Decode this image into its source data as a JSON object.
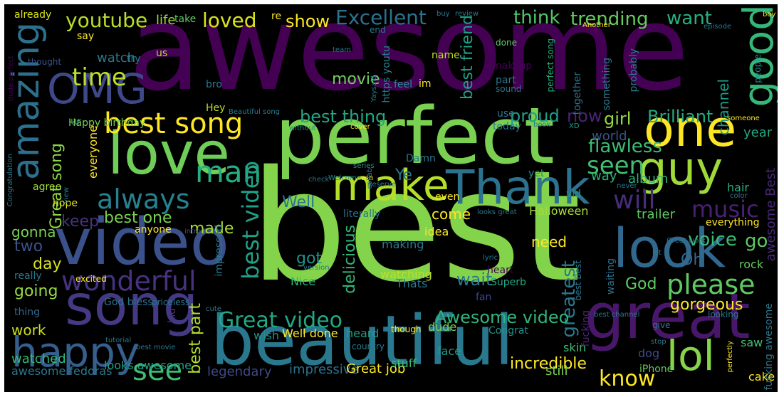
{
  "words": [
    {
      "text": "awesome",
      "color": "#440154"
    },
    {
      "text": "best",
      "color": "#84d44b"
    },
    {
      "text": "perfect",
      "color": "#7ad151"
    },
    {
      "text": "beautiful",
      "color": "#2a788e"
    },
    {
      "text": "great",
      "color": "#481769"
    },
    {
      "text": "video",
      "color": "#3b518b"
    },
    {
      "text": "love",
      "color": "#6ece58"
    },
    {
      "text": "song",
      "color": "#443983"
    },
    {
      "text": "one",
      "color": "#fde725"
    },
    {
      "text": "look",
      "color": "#31688e"
    },
    {
      "text": "Thank",
      "color": "#2c728e"
    },
    {
      "text": "guy",
      "color": "#a0da39"
    },
    {
      "text": "make",
      "color": "#b5de2b"
    },
    {
      "text": "happy",
      "color": "#355f8d"
    },
    {
      "text": "lol",
      "color": "#86d549"
    },
    {
      "text": "OMG",
      "color": "#3e4989"
    },
    {
      "text": "amazing",
      "color": "#2d708e"
    },
    {
      "text": "good",
      "color": "#35b779"
    },
    {
      "text": "best song",
      "color": "#fde725"
    },
    {
      "text": "always",
      "color": "#26828e"
    },
    {
      "text": "wonderful",
      "color": "#46327e"
    },
    {
      "text": "please",
      "color": "#5ec962"
    },
    {
      "text": "see",
      "color": "#3dbc74"
    },
    {
      "text": "man",
      "color": "#26ad81"
    },
    {
      "text": "know",
      "color": "#fde725"
    },
    {
      "text": "Great video",
      "color": "#22a884"
    },
    {
      "text": "best video",
      "color": "#1fa187"
    },
    {
      "text": "will",
      "color": "#472d7b"
    },
    {
      "text": "music",
      "color": "#482173"
    },
    {
      "text": "seen",
      "color": "#42be71"
    },
    {
      "text": "time",
      "color": "#bddf26"
    },
    {
      "text": "greatest",
      "color": "#2a788e"
    },
    {
      "text": "voice",
      "color": "#3bbb75"
    },
    {
      "text": "Awesome video",
      "color": "#2fb47c"
    },
    {
      "text": "flawless",
      "color": "#3dbc74"
    },
    {
      "text": "loved",
      "color": "#dae319"
    },
    {
      "text": "Excellent",
      "color": "#2c728e"
    },
    {
      "text": "youtube",
      "color": "#b8de29"
    },
    {
      "text": "think",
      "color": "#52c569"
    },
    {
      "text": "trending",
      "color": "#65cb5e"
    },
    {
      "text": "want",
      "color": "#29af7f"
    },
    {
      "text": "show",
      "color": "#fde725"
    },
    {
      "text": "best thing",
      "color": "#22a884"
    },
    {
      "text": "proud",
      "color": "#1f9e89"
    },
    {
      "text": "now",
      "color": "#482475"
    },
    {
      "text": "girl",
      "color": "#95d840"
    },
    {
      "text": "Brilliant",
      "color": "#25ac82"
    },
    {
      "text": "best friend",
      "color": "#1fa187"
    },
    {
      "text": "channel",
      "color": "#1e9c89"
    },
    {
      "text": "movie",
      "color": "#6ece58"
    },
    {
      "text": "gorgeous",
      "color": "#fde725"
    },
    {
      "text": "God",
      "color": "#5ec962"
    },
    {
      "text": "wait",
      "color": "#2a788e"
    },
    {
      "text": "delicious",
      "color": "#35b779"
    },
    {
      "text": "incredible",
      "color": "#fde725"
    },
    {
      "text": "Great song",
      "color": "#8bd646"
    },
    {
      "text": "best part",
      "color": "#b5de2b"
    },
    {
      "text": "made",
      "color": "#a8db34"
    },
    {
      "text": "two",
      "color": "#3b528b"
    },
    {
      "text": "day",
      "color": "#d8e219"
    },
    {
      "text": "going",
      "color": "#95d840"
    },
    {
      "text": "keep",
      "color": "#46327e"
    },
    {
      "text": "best one",
      "color": "#7ad151"
    },
    {
      "text": "gonna",
      "color": "#7ad151"
    },
    {
      "text": "work",
      "color": "#cde11d"
    },
    {
      "text": "watched",
      "color": "#35b779"
    },
    {
      "text": "awesome fedoras",
      "color": "#2a788e"
    },
    {
      "text": "looks awesome",
      "color": "#1f9e89"
    },
    {
      "text": "legendary",
      "color": "#3e4989"
    },
    {
      "text": "impressive",
      "color": "#2c728e"
    },
    {
      "text": "Great job",
      "color": "#fde725"
    },
    {
      "text": "still",
      "color": "#7ad151"
    },
    {
      "text": "watch",
      "color": "#2a788e"
    },
    {
      "text": "life",
      "color": "#a0da39"
    },
    {
      "text": "Oh",
      "color": "#31688e"
    },
    {
      "text": "got",
      "color": "#21918c"
    },
    {
      "text": "Well",
      "color": "#2c728e"
    },
    {
      "text": "Ye",
      "color": "#2a788e"
    },
    {
      "text": "come",
      "color": "#fde725"
    },
    {
      "text": "need",
      "color": "#fde725"
    },
    {
      "text": "year",
      "color": "#22a884"
    },
    {
      "text": "world",
      "color": "#3b528b"
    },
    {
      "text": "way",
      "color": "#2fb47c"
    },
    {
      "text": "album",
      "color": "#2fb47c"
    },
    {
      "text": "go",
      "color": "#5ec962"
    },
    {
      "text": "awesome Best",
      "color": "#482878"
    },
    {
      "text": "trailer",
      "color": "#5ec962"
    },
    {
      "text": "Halloween",
      "color": "#a5db36"
    },
    {
      "text": "hair",
      "color": "#29af7f"
    },
    {
      "text": "rock",
      "color": "#65cb5e"
    },
    {
      "text": "saw",
      "color": "#42be71"
    },
    {
      "text": "skin",
      "color": "#3dbc74"
    },
    {
      "text": "dog",
      "color": "#3e4989"
    },
    {
      "text": "cake",
      "color": "#fde725"
    },
    {
      "text": "iPhone",
      "color": "#65cb5e"
    },
    {
      "text": "face",
      "color": "#1f9e89"
    },
    {
      "text": "stuff",
      "color": "#3dbc74"
    },
    {
      "text": "Congrat",
      "color": "#21918c"
    },
    {
      "text": "dude",
      "color": "#7ad151"
    },
    {
      "text": "Superb",
      "color": "#22a884"
    },
    {
      "text": "fan",
      "color": "#3e4989"
    },
    {
      "text": "Thats",
      "color": "#2a788e"
    },
    {
      "text": "watching",
      "color": "#bddf26"
    },
    {
      "text": "Nice",
      "color": "#2fb47c"
    },
    {
      "text": "making",
      "color": "#2a788e"
    },
    {
      "text": "idea",
      "color": "#fde725"
    },
    {
      "text": "let",
      "color": "#7ad151"
    },
    {
      "text": "Well done",
      "color": "#fde725"
    },
    {
      "text": "heard",
      "color": "#1f9e89"
    },
    {
      "text": "wish",
      "color": "#21918c"
    },
    {
      "text": "Happy birthday",
      "color": "#7ad151"
    },
    {
      "text": "everyone",
      "color": "#fde725"
    },
    {
      "text": "hope",
      "color": "#e5e419"
    },
    {
      "text": "agree",
      "color": "#a0da39"
    },
    {
      "text": "really",
      "color": "#2a788e"
    },
    {
      "text": "thing",
      "color": "#31688e"
    },
    {
      "text": "kid",
      "color": "#46327e"
    },
    {
      "text": "God bless",
      "color": "#2c728e"
    },
    {
      "text": "anyone",
      "color": "#fde725"
    },
    {
      "text": "impressed",
      "color": "#2a788e"
    },
    {
      "text": "Hey",
      "color": "#bddf26"
    },
    {
      "text": "ur",
      "color": "#1f9e89"
    },
    {
      "text": "bro",
      "color": "#2a788e"
    },
    {
      "text": "us",
      "color": "#b5de2b"
    },
    {
      "text": "say",
      "color": "#fde725"
    },
    {
      "text": "already",
      "color": "#d8e219"
    },
    {
      "text": "take",
      "color": "#5ec962"
    },
    {
      "text": "re",
      "color": "#fde725"
    },
    {
      "text": "end",
      "color": "#2a788e"
    },
    {
      "text": "done",
      "color": "#5ec962"
    },
    {
      "text": "name",
      "color": "#c2df23"
    },
    {
      "text": "makeup",
      "color": "#440154"
    },
    {
      "text": "part",
      "color": "#2c728e"
    },
    {
      "text": "feel",
      "color": "#21918c"
    },
    {
      "text": "im",
      "color": "#fde725"
    },
    {
      "text": "https youtu",
      "color": "#26828e"
    },
    {
      "text": "team",
      "color": "#2a788e"
    },
    {
      "text": "try",
      "color": "#2a788e"
    },
    {
      "text": "thought",
      "color": "#3b528b"
    },
    {
      "text": "Another",
      "color": "#fde725"
    },
    {
      "text": "episode",
      "color": "#2a788e"
    },
    {
      "text": "boy",
      "color": "#fde725"
    },
    {
      "text": "people",
      "color": "#21918c"
    },
    {
      "text": "probably",
      "color": "#2a788e"
    },
    {
      "text": "something",
      "color": "#2a788e"
    },
    {
      "text": "together",
      "color": "#2c728e"
    },
    {
      "text": "perfect song",
      "color": "#29af7f"
    },
    {
      "text": "sound",
      "color": "#2a788e"
    },
    {
      "text": "use",
      "color": "#2a788e"
    },
    {
      "text": "today",
      "color": "#2a788e"
    },
    {
      "text": "book",
      "color": "#2a788e"
    },
    {
      "text": "XD",
      "color": "#1f9e89"
    },
    {
      "text": "cover",
      "color": "#fde725"
    },
    {
      "text": "without",
      "color": "#21918c"
    },
    {
      "text": "Beautiful song",
      "color": "#2a788e"
    },
    {
      "text": "series",
      "color": "#21918c"
    },
    {
      "text": "win",
      "color": "#fde725"
    },
    {
      "text": "Damn",
      "color": "#2a788e"
    },
    {
      "text": "collab",
      "color": "#2a788e"
    },
    {
      "text": "deserve",
      "color": "#2a788e"
    },
    {
      "text": "check",
      "color": "#2a788e"
    },
    {
      "text": "Welcome",
      "color": "#21918c"
    },
    {
      "text": "even",
      "color": "#fde725"
    },
    {
      "text": "yet",
      "color": "#21918c"
    },
    {
      "text": "vid",
      "color": "#21918c"
    },
    {
      "text": "never",
      "color": "#2a788e"
    },
    {
      "text": "color",
      "color": "#2a788e"
    },
    {
      "text": "looks great",
      "color": "#2a788e"
    },
    {
      "text": "literally",
      "color": "#2c728e"
    },
    {
      "text": "intro",
      "color": "#3e4989"
    },
    {
      "text": "everything",
      "color": "#fde725"
    },
    {
      "text": "Great work",
      "color": "#2a788e"
    },
    {
      "text": "lot",
      "color": "#2a788e"
    },
    {
      "text": "waiting",
      "color": "#2c728e"
    },
    {
      "text": "best Best",
      "color": "#2a788e"
    },
    {
      "text": "lyric",
      "color": "#2a788e"
    },
    {
      "text": "version",
      "color": "#2a788e"
    },
    {
      "text": "heart",
      "color": "#440154"
    },
    {
      "text": "excited",
      "color": "#fde725"
    },
    {
      "text": "priceless",
      "color": "#2a788e"
    },
    {
      "text": "cute",
      "color": "#2a788e"
    },
    {
      "text": "fucking",
      "color": "#482878"
    },
    {
      "text": "best channel",
      "color": "#2a788e"
    },
    {
      "text": "looking",
      "color": "#2a788e"
    },
    {
      "text": "fucking awesome",
      "color": "#2a788e"
    },
    {
      "text": "give",
      "color": "#2a788e"
    },
    {
      "text": "stop",
      "color": "#2a788e"
    },
    {
      "text": "perfectly",
      "color": "#fde725"
    },
    {
      "text": "country",
      "color": "#2a788e"
    },
    {
      "text": "though",
      "color": "#fde725"
    },
    {
      "text": "tutorial",
      "color": "#2a788e"
    },
    {
      "text": "best movie",
      "color": "#2a788e"
    },
    {
      "text": "view",
      "color": "#2a788e"
    },
    {
      "text": "Congratulation",
      "color": "#2a788e"
    },
    {
      "text": "dude perfect",
      "color": "#440154"
    },
    {
      "text": "someone",
      "color": "#fde725"
    },
    {
      "text": "review",
      "color": "#2a788e"
    },
    {
      "text": "buy",
      "color": "#2a788e"
    },
    {
      "text": "Yaysaid",
      "color": "#2a788e"
    }
  ]
}
